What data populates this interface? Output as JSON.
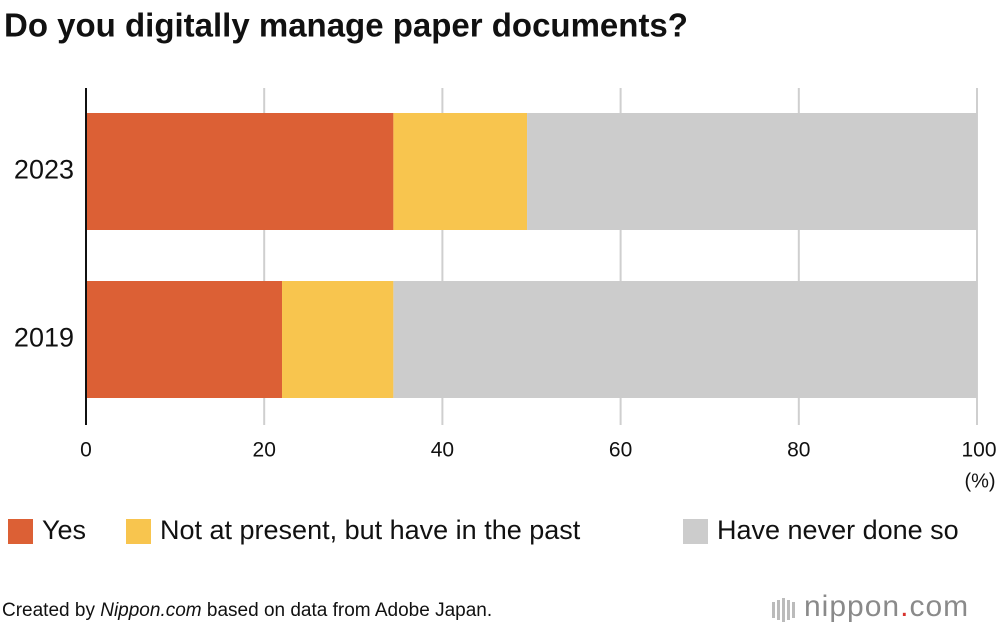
{
  "chart_data": {
    "type": "stacked-bar-horizontal",
    "title": "Do you digitally manage paper documents?",
    "categories": [
      "2023",
      "2019"
    ],
    "series": [
      {
        "name": "Yes",
        "color": "#dc6035",
        "values": [
          34.5,
          22.0
        ]
      },
      {
        "name": "Not at present, but have in the past",
        "color": "#f8c54e",
        "values": [
          15.0,
          12.5
        ]
      },
      {
        "name": "Have never done so",
        "color": "#cccccc",
        "values": [
          50.5,
          65.5
        ]
      }
    ],
    "xlim": [
      0,
      100
    ],
    "xticks": [
      0,
      20,
      40,
      60,
      80,
      100
    ],
    "x_label": "(%)",
    "grid": true,
    "source": {
      "prefix": "Created by ",
      "site": "Nippon.com",
      "suffix": " based on data from Adobe Japan."
    },
    "logo": {
      "name": "nippon",
      "dot": ".",
      "tld": "com"
    }
  }
}
